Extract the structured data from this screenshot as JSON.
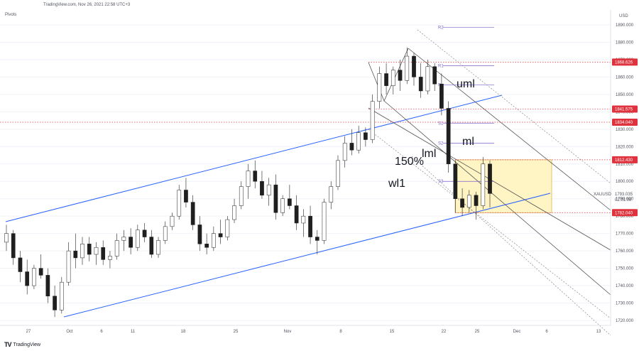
{
  "header": {
    "source": "TradingView.com, Nov 26, 2021 22:58 UTC+3",
    "indicator": "Pivots",
    "currency": "USD"
  },
  "logo": {
    "text": "TradingView",
    "icon": "tradingview-logo-icon"
  },
  "colors": {
    "up": "#26a69a",
    "down": "#1f1f1f",
    "channel": "#2962ff",
    "level": "#e0323c",
    "pivot": "#7b61c9",
    "zone": "#fff3b5",
    "fork": "#555555"
  },
  "chart_data": {
    "type": "candlestick",
    "symbol": "XAUUSD",
    "last_price": "1793.035",
    "countdown": "02:01:08",
    "ylim": [
      1715,
      1895
    ],
    "y_ticks": [
      1890,
      1880,
      1870,
      1860,
      1850,
      1840,
      1830,
      1820,
      1810,
      1800,
      1790,
      1780,
      1770,
      1760,
      1750,
      1740,
      1730,
      1720
    ],
    "y_tick_labels": [
      "1890.000",
      "1880.000",
      "1870.000",
      "1860.000",
      "1850.000",
      "1840.000",
      "1830.000",
      "1820.000",
      "1810.000",
      "1800.000",
      "1790.000",
      "1780.000",
      "1770.000",
      "1760.000",
      "1750.000",
      "1740.000",
      "1730.000",
      "1720.000"
    ],
    "x_ticks": [
      "27",
      "Oct",
      "6",
      "11",
      "18",
      "25",
      "Nov",
      "8",
      "15",
      "22",
      "25",
      "Dec",
      "6",
      "13"
    ],
    "price_tags": [
      {
        "label": "1868.626",
        "value": 1868.6
      },
      {
        "label": "1841.575",
        "value": 1841.6
      },
      {
        "label": "1834.040",
        "value": 1834.0
      },
      {
        "label": "1812.430",
        "value": 1812.4
      },
      {
        "label": "1782.040",
        "value": 1782.0
      }
    ],
    "pivots": [
      {
        "label": "R2",
        "value": 1888.5
      },
      {
        "label": "R1",
        "value": 1866.5
      },
      {
        "label": "P",
        "value": 1855.5
      },
      {
        "label": "S1",
        "value": 1833.5
      },
      {
        "label": "S2",
        "value": 1822.0
      },
      {
        "label": "S3",
        "value": 1800.0
      }
    ],
    "zone": {
      "top": 1812.4,
      "bottom": 1782.0
    },
    "annotations": [
      "uml",
      "ml",
      "lml",
      "150%",
      "wl1"
    ],
    "candles": [
      {
        "o": 1765,
        "h": 1775,
        "l": 1760,
        "c": 1770
      },
      {
        "o": 1770,
        "h": 1772,
        "l": 1752,
        "c": 1756
      },
      {
        "o": 1756,
        "h": 1760,
        "l": 1742,
        "c": 1748
      },
      {
        "o": 1748,
        "h": 1755,
        "l": 1735,
        "c": 1740
      },
      {
        "o": 1740,
        "h": 1752,
        "l": 1738,
        "c": 1750
      },
      {
        "o": 1750,
        "h": 1758,
        "l": 1744,
        "c": 1746
      },
      {
        "o": 1746,
        "h": 1750,
        "l": 1730,
        "c": 1734
      },
      {
        "o": 1734,
        "h": 1740,
        "l": 1722,
        "c": 1726
      },
      {
        "o": 1726,
        "h": 1745,
        "l": 1724,
        "c": 1742
      },
      {
        "o": 1742,
        "h": 1765,
        "l": 1740,
        "c": 1760
      },
      {
        "o": 1760,
        "h": 1770,
        "l": 1750,
        "c": 1756
      },
      {
        "o": 1756,
        "h": 1768,
        "l": 1752,
        "c": 1764
      },
      {
        "o": 1764,
        "h": 1768,
        "l": 1754,
        "c": 1758
      },
      {
        "o": 1758,
        "h": 1765,
        "l": 1752,
        "c": 1762
      },
      {
        "o": 1762,
        "h": 1766,
        "l": 1752,
        "c": 1755
      },
      {
        "o": 1755,
        "h": 1760,
        "l": 1750,
        "c": 1757
      },
      {
        "o": 1757,
        "h": 1770,
        "l": 1755,
        "c": 1766
      },
      {
        "o": 1766,
        "h": 1772,
        "l": 1760,
        "c": 1768
      },
      {
        "o": 1768,
        "h": 1773,
        "l": 1758,
        "c": 1762
      },
      {
        "o": 1762,
        "h": 1775,
        "l": 1760,
        "c": 1772
      },
      {
        "o": 1772,
        "h": 1776,
        "l": 1765,
        "c": 1768
      },
      {
        "o": 1768,
        "h": 1772,
        "l": 1756,
        "c": 1758
      },
      {
        "o": 1758,
        "h": 1768,
        "l": 1756,
        "c": 1766
      },
      {
        "o": 1766,
        "h": 1777,
        "l": 1764,
        "c": 1774
      },
      {
        "o": 1774,
        "h": 1782,
        "l": 1772,
        "c": 1780
      },
      {
        "o": 1780,
        "h": 1798,
        "l": 1778,
        "c": 1795
      },
      {
        "o": 1795,
        "h": 1802,
        "l": 1785,
        "c": 1788
      },
      {
        "o": 1788,
        "h": 1792,
        "l": 1772,
        "c": 1775
      },
      {
        "o": 1775,
        "h": 1780,
        "l": 1760,
        "c": 1764
      },
      {
        "o": 1764,
        "h": 1770,
        "l": 1758,
        "c": 1762
      },
      {
        "o": 1762,
        "h": 1774,
        "l": 1760,
        "c": 1770
      },
      {
        "o": 1770,
        "h": 1778,
        "l": 1764,
        "c": 1768
      },
      {
        "o": 1768,
        "h": 1780,
        "l": 1766,
        "c": 1778
      },
      {
        "o": 1778,
        "h": 1790,
        "l": 1776,
        "c": 1786
      },
      {
        "o": 1786,
        "h": 1800,
        "l": 1784,
        "c": 1797
      },
      {
        "o": 1797,
        "h": 1810,
        "l": 1790,
        "c": 1806
      },
      {
        "o": 1806,
        "h": 1812,
        "l": 1796,
        "c": 1800
      },
      {
        "o": 1800,
        "h": 1806,
        "l": 1790,
        "c": 1792
      },
      {
        "o": 1792,
        "h": 1802,
        "l": 1786,
        "c": 1798
      },
      {
        "o": 1798,
        "h": 1804,
        "l": 1778,
        "c": 1782
      },
      {
        "o": 1782,
        "h": 1792,
        "l": 1780,
        "c": 1790
      },
      {
        "o": 1790,
        "h": 1798,
        "l": 1784,
        "c": 1786
      },
      {
        "o": 1786,
        "h": 1792,
        "l": 1772,
        "c": 1776
      },
      {
        "o": 1776,
        "h": 1784,
        "l": 1768,
        "c": 1780
      },
      {
        "o": 1780,
        "h": 1786,
        "l": 1764,
        "c": 1768
      },
      {
        "o": 1768,
        "h": 1772,
        "l": 1758,
        "c": 1766
      },
      {
        "o": 1766,
        "h": 1790,
        "l": 1764,
        "c": 1788
      },
      {
        "o": 1788,
        "h": 1800,
        "l": 1784,
        "c": 1797
      },
      {
        "o": 1797,
        "h": 1815,
        "l": 1795,
        "c": 1812
      },
      {
        "o": 1812,
        "h": 1826,
        "l": 1808,
        "c": 1822
      },
      {
        "o": 1822,
        "h": 1830,
        "l": 1815,
        "c": 1818
      },
      {
        "o": 1818,
        "h": 1832,
        "l": 1816,
        "c": 1828
      },
      {
        "o": 1828,
        "h": 1831,
        "l": 1820,
        "c": 1824
      },
      {
        "o": 1824,
        "h": 1850,
        "l": 1822,
        "c": 1846
      },
      {
        "o": 1846,
        "h": 1866,
        "l": 1842,
        "c": 1862
      },
      {
        "o": 1862,
        "h": 1868,
        "l": 1850,
        "c": 1855
      },
      {
        "o": 1855,
        "h": 1866,
        "l": 1850,
        "c": 1864
      },
      {
        "o": 1864,
        "h": 1870,
        "l": 1852,
        "c": 1858
      },
      {
        "o": 1858,
        "h": 1877,
        "l": 1856,
        "c": 1872
      },
      {
        "o": 1872,
        "h": 1874,
        "l": 1855,
        "c": 1860
      },
      {
        "o": 1860,
        "h": 1868,
        "l": 1848,
        "c": 1852
      },
      {
        "o": 1852,
        "h": 1870,
        "l": 1850,
        "c": 1866
      },
      {
        "o": 1866,
        "h": 1868,
        "l": 1852,
        "c": 1856
      },
      {
        "o": 1856,
        "h": 1862,
        "l": 1838,
        "c": 1842
      },
      {
        "o": 1842,
        "h": 1846,
        "l": 1805,
        "c": 1810
      },
      {
        "o": 1810,
        "h": 1812,
        "l": 1782,
        "c": 1790
      },
      {
        "o": 1790,
        "h": 1796,
        "l": 1780,
        "c": 1785
      },
      {
        "o": 1785,
        "h": 1795,
        "l": 1782,
        "c": 1792
      },
      {
        "o": 1792,
        "h": 1794,
        "l": 1778,
        "c": 1786
      },
      {
        "o": 1786,
        "h": 1814,
        "l": 1784,
        "c": 1810
      },
      {
        "o": 1810,
        "h": 1812,
        "l": 1785,
        "c": 1793
      }
    ]
  }
}
